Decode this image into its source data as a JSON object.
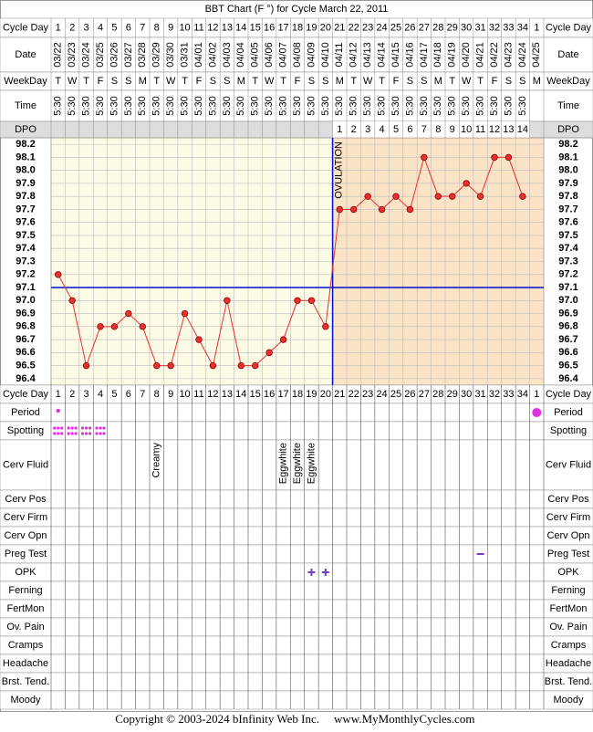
{
  "chart_data": {
    "type": "line",
    "title": "BBT Chart (F °) for Cycle March 22, 2011",
    "categories": [
      "03/22",
      "03/23",
      "03/24",
      "03/25",
      "03/26",
      "03/27",
      "03/28",
      "03/29",
      "03/30",
      "03/31",
      "04/01",
      "04/02",
      "04/03",
      "04/04",
      "04/05",
      "04/06",
      "04/07",
      "04/08",
      "04/09",
      "04/10",
      "04/11",
      "04/12",
      "04/13",
      "04/14",
      "04/15",
      "04/16",
      "04/17",
      "04/18",
      "04/19",
      "04/20",
      "04/21",
      "04/22",
      "04/23",
      "04/24",
      "04/25"
    ],
    "series": [
      {
        "color": "#e83030",
        "values": [
          97.2,
          97.0,
          96.5,
          96.8,
          96.8,
          96.9,
          96.8,
          96.5,
          96.5,
          96.9,
          96.7,
          96.5,
          97.0,
          96.5,
          96.5,
          96.6,
          96.7,
          97.0,
          97.0,
          96.8,
          97.7,
          97.7,
          97.8,
          97.7,
          97.8,
          97.7,
          98.1,
          97.8,
          97.8,
          97.9,
          97.8,
          98.1,
          98.1,
          97.8,
          null
        ]
      }
    ],
    "ylim": [
      96.35,
      98.25
    ],
    "yticks": [
      98.2,
      98.1,
      {
        "value": 98,
        "label": "98.0"
      },
      97.9,
      97.8,
      97.7,
      97.6,
      97.5,
      97.4,
      97.3,
      97.2,
      97.1,
      {
        "value": 97,
        "label": "97.0"
      },
      96.9,
      96.8,
      96.7,
      96.6,
      96.5,
      96.4
    ],
    "grid": true,
    "coverline": 97.1,
    "ovulation": {
      "label": "OVULATION",
      "after": "04/10"
    }
  },
  "table": {
    "top_rows": [
      "Cycle Day",
      "Date",
      "WeekDay",
      "Time",
      "DPO"
    ],
    "bottom_rows": [
      "Cycle Day",
      "Period",
      "Spotting",
      "Cerv Fluid",
      "Cerv Pos",
      "Cerv Firm",
      "Cerv Opn",
      "Preg Test",
      "OPK",
      "Ferning",
      "FertMon",
      "Ov. Pain",
      "Cramps",
      "Headache",
      "Brst. Tend.",
      "Moody"
    ],
    "cycle_days": [
      1,
      2,
      3,
      4,
      5,
      6,
      7,
      8,
      9,
      10,
      11,
      12,
      13,
      14,
      15,
      16,
      17,
      18,
      19,
      20,
      21,
      22,
      23,
      24,
      25,
      26,
      27,
      28,
      29,
      30,
      31,
      32,
      33,
      34,
      1
    ],
    "weekdays": [
      "T",
      "W",
      "T",
      "F",
      "S",
      "S",
      "M",
      "T",
      "W",
      "T",
      "F",
      "S",
      "S",
      "M",
      "T",
      "W",
      "T",
      "F",
      "S",
      "S",
      "M",
      "T",
      "W",
      "T",
      "F",
      "S",
      "S",
      "M",
      "T",
      "W",
      "T",
      "F",
      "S",
      "S",
      "M"
    ],
    "times": [
      "5:30",
      "5:30",
      "5:30",
      "5:30",
      "5:30",
      "5:30",
      "5:30",
      "5:30",
      "5:30",
      "5:30",
      "5:30",
      "5:30",
      "5:30",
      "5:30",
      "5:30",
      "5:30",
      "5:30",
      "5:30",
      "5:30",
      "5:30",
      "5:30",
      "5:30",
      "5:30",
      "5:30",
      "5:30",
      "5:30",
      "5:30",
      "5:30",
      "5:30",
      "5:30",
      "5:30",
      "5:30",
      "5:30",
      "5:30",
      null
    ],
    "dpo": [
      null,
      null,
      null,
      null,
      null,
      null,
      null,
      null,
      null,
      null,
      null,
      null,
      null,
      null,
      null,
      null,
      null,
      null,
      null,
      null,
      1,
      2,
      3,
      4,
      5,
      6,
      7,
      8,
      9,
      10,
      11,
      12,
      13,
      14,
      null
    ],
    "cerv_fluid": [
      null,
      null,
      null,
      null,
      null,
      null,
      null,
      "Creamy",
      null,
      null,
      null,
      null,
      null,
      null,
      null,
      null,
      "Eggwhite",
      "Eggwhite",
      "Eggwhite",
      null,
      null,
      null,
      null,
      null,
      null,
      null,
      null,
      null,
      null,
      null,
      null,
      null,
      null,
      null,
      null
    ]
  },
  "footer": {
    "copyright": "Copyright © 2003-2024 bInfinity Web Inc.",
    "site": "www.MyMonthlyCycles.com"
  }
}
